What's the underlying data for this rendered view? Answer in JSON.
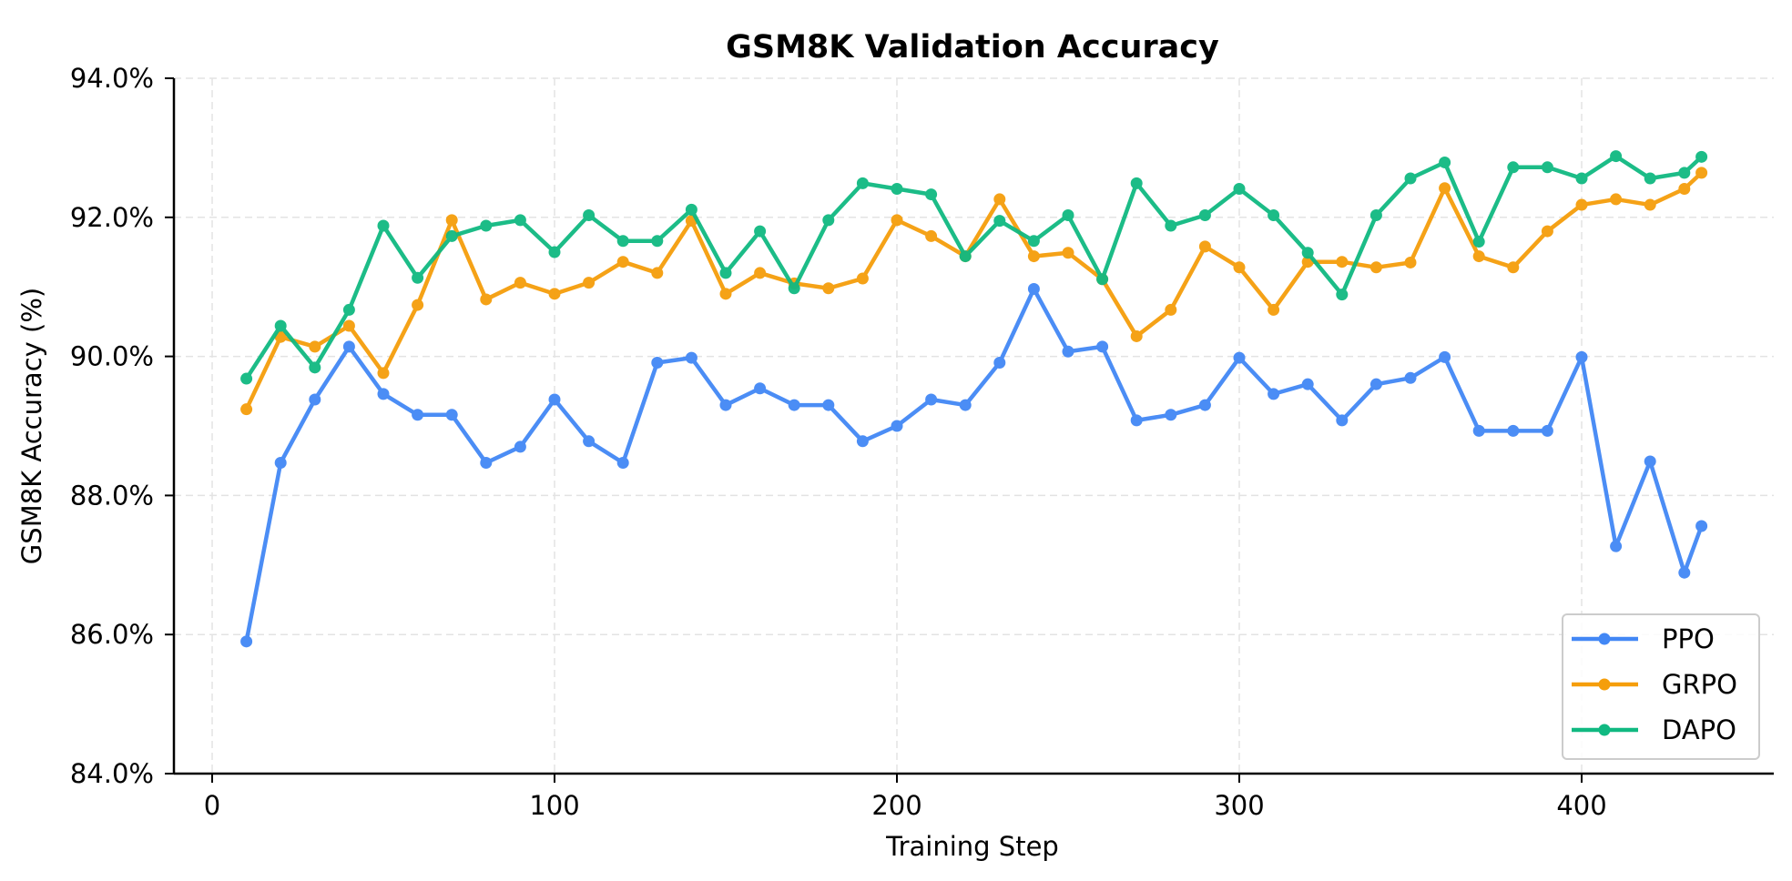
{
  "chart_data": {
    "type": "line",
    "title": "GSM8K Validation Accuracy",
    "xlabel": "Training Step",
    "ylabel": "GSM8K Accuracy (%)",
    "xlim": [
      -11,
      455
    ],
    "ylim": [
      84,
      94
    ],
    "xticks": [
      0,
      100,
      200,
      300,
      400
    ],
    "xtick_labels": [
      "0",
      "100",
      "200",
      "300",
      "400"
    ],
    "yticks": [
      84,
      86,
      88,
      90,
      92,
      94
    ],
    "ytick_labels": [
      "84.0%",
      "86.0%",
      "88.0%",
      "90.0%",
      "92.0%",
      "94.0%"
    ],
    "grid": true,
    "legend_position": "lower-right",
    "x": [
      10,
      20,
      30,
      40,
      50,
      60,
      70,
      80,
      90,
      100,
      110,
      120,
      130,
      140,
      150,
      160,
      170,
      180,
      190,
      200,
      210,
      220,
      230,
      240,
      250,
      260,
      270,
      280,
      290,
      300,
      310,
      320,
      330,
      340,
      350,
      360,
      370,
      380,
      390,
      400,
      410,
      420,
      430,
      435
    ],
    "series": [
      {
        "name": "PPO",
        "color": "#4287f5",
        "values": [
          85.9,
          88.47,
          89.38,
          90.14,
          89.46,
          89.16,
          89.16,
          88.47,
          88.7,
          89.38,
          88.78,
          88.47,
          89.91,
          89.98,
          89.3,
          89.54,
          89.3,
          89.3,
          88.78,
          89.0,
          89.38,
          89.3,
          89.91,
          90.97,
          90.07,
          90.14,
          89.08,
          89.16,
          89.3,
          89.98,
          89.46,
          89.6,
          89.08,
          89.6,
          89.69,
          89.99,
          88.93,
          88.93,
          88.93,
          89.99,
          87.27,
          88.49,
          86.89,
          87.56
        ]
      },
      {
        "name": "GRPO",
        "color": "#f59e0b",
        "values": [
          89.24,
          90.28,
          90.14,
          90.44,
          89.76,
          90.74,
          91.96,
          90.82,
          91.06,
          90.9,
          91.06,
          91.36,
          91.2,
          91.95,
          90.9,
          91.2,
          91.05,
          90.98,
          91.12,
          91.96,
          91.73,
          91.44,
          92.26,
          91.44,
          91.49,
          91.11,
          90.29,
          90.67,
          91.58,
          91.28,
          90.67,
          91.36,
          91.36,
          91.28,
          91.35,
          92.42,
          91.44,
          91.28,
          91.8,
          92.18,
          92.26,
          92.18,
          92.41,
          92.64
        ]
      },
      {
        "name": "DAPO",
        "color": "#10b981",
        "values": [
          89.68,
          90.44,
          89.84,
          90.67,
          91.88,
          91.13,
          91.73,
          91.88,
          91.96,
          91.5,
          92.03,
          91.66,
          91.66,
          92.11,
          91.2,
          91.8,
          90.98,
          91.96,
          92.49,
          92.41,
          92.33,
          91.44,
          91.95,
          91.66,
          92.03,
          91.11,
          92.49,
          91.88,
          92.03,
          92.41,
          92.03,
          91.49,
          90.89,
          92.03,
          92.56,
          92.79,
          91.65,
          92.72,
          92.72,
          92.56,
          92.88,
          92.56,
          92.64,
          92.87
        ]
      }
    ]
  }
}
